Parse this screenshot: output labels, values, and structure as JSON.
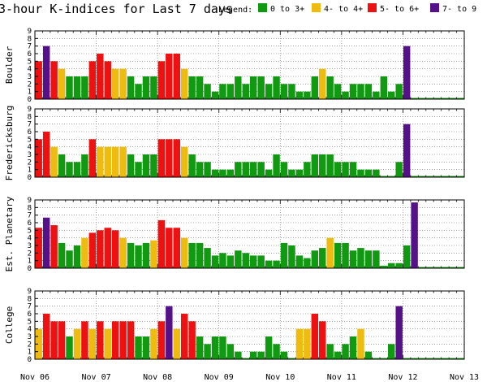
{
  "title": "3-hour K-indices for Last 7 days",
  "legend": {
    "label": "Legend:",
    "items": [
      {
        "label": "0 to 3+",
        "color": "#119911"
      },
      {
        "label": "4- to 4+",
        "color": "#eebb11"
      },
      {
        "label": "5- to 6+",
        "color": "#ee1111"
      },
      {
        "label": "7- to 9",
        "color": "#551188"
      }
    ]
  },
  "chart_data": [
    {
      "type": "bar",
      "ylabel": "Boulder",
      "ylim": [
        0,
        9
      ],
      "ytick_labels": [
        "0",
        "1",
        "2",
        "3",
        "4",
        "5",
        "6",
        "7",
        "8",
        "9"
      ],
      "values": [
        5,
        7,
        5,
        4,
        3,
        3,
        3,
        5,
        6,
        5,
        4,
        4,
        3,
        2,
        3,
        3,
        5,
        6,
        6,
        4,
        3,
        3,
        2,
        1,
        2,
        2,
        3,
        2,
        3,
        3,
        2,
        3,
        2,
        2,
        1,
        1,
        3,
        4,
        3,
        2,
        1,
        2,
        2,
        2,
        1,
        3,
        1,
        2,
        7,
        0,
        0,
        0,
        0,
        0,
        0,
        0
      ]
    },
    {
      "type": "bar",
      "ylabel": "Fredericksburg",
      "ylim": [
        0,
        9
      ],
      "ytick_labels": [
        "0",
        "1",
        "2",
        "3",
        "4",
        "5",
        "6",
        "7",
        "8",
        "9"
      ],
      "values": [
        5,
        6,
        4,
        3,
        2,
        2,
        3,
        5,
        4,
        4,
        4,
        4,
        3,
        2,
        3,
        3,
        5,
        5,
        5,
        4,
        3,
        2,
        2,
        1,
        1,
        1,
        2,
        2,
        2,
        2,
        1,
        3,
        2,
        1,
        1,
        2,
        3,
        3,
        3,
        2,
        2,
        2,
        1,
        1,
        1,
        0,
        0,
        2,
        7,
        0,
        0,
        0,
        0,
        0,
        0,
        0
      ]
    },
    {
      "type": "bar",
      "ylabel": "Est. Planetary",
      "ylim": [
        0,
        9
      ],
      "ytick_labels": [
        "0",
        "1",
        "2",
        "3",
        "4",
        "5",
        "6",
        "7",
        "8",
        "9"
      ],
      "values": [
        5.33,
        6.67,
        5.67,
        3.33,
        2.33,
        3,
        4,
        4.67,
        5,
        5.33,
        5,
        4,
        3.33,
        3,
        3.33,
        3.67,
        6.33,
        5.33,
        5.33,
        4,
        3.33,
        3.33,
        2.67,
        1.67,
        2,
        1.67,
        2.33,
        2,
        1.67,
        1.67,
        1,
        1,
        3.33,
        3,
        1.67,
        1.33,
        2.33,
        2.67,
        4,
        3.33,
        3.33,
        2.33,
        2.67,
        2.33,
        2.33,
        0.33,
        0.67,
        0.67,
        3,
        8.67,
        0,
        0,
        0,
        0,
        0,
        0
      ]
    },
    {
      "type": "bar",
      "ylabel": "College",
      "ylim": [
        0,
        9
      ],
      "ytick_labels": [
        "0",
        "1",
        "2",
        "3",
        "4",
        "5",
        "6",
        "7",
        "8",
        "9"
      ],
      "xtick_labels": [
        "Nov 06",
        "Nov 07",
        "Nov 08",
        "Nov 09",
        "Nov 10",
        "Nov 11",
        "Nov 12",
        "Nov 13"
      ],
      "values": [
        4,
        6,
        5,
        5,
        3,
        4,
        5,
        4,
        5,
        4,
        5,
        5,
        5,
        3,
        3,
        4,
        5,
        7,
        4,
        6,
        5,
        3,
        2,
        3,
        3,
        2,
        1,
        0,
        1,
        1,
        3,
        2,
        1,
        0,
        4,
        4,
        6,
        5,
        2,
        1,
        2,
        3,
        4,
        1,
        0,
        0,
        2,
        7,
        0,
        0,
        0,
        0,
        0,
        0,
        0,
        0
      ]
    }
  ]
}
